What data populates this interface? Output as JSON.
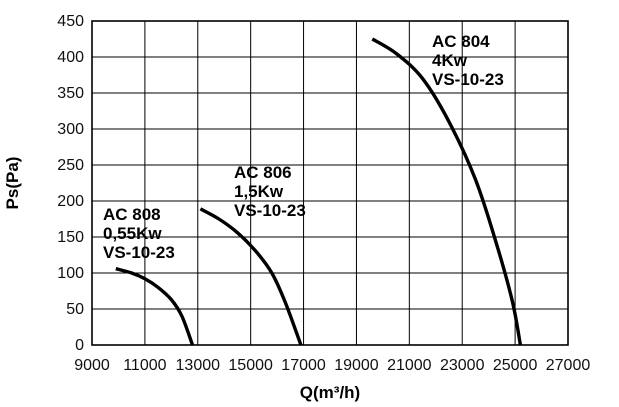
{
  "chart_data": {
    "type": "line",
    "xlabel": "Q(m³/h)",
    "ylabel": "Ps(Pa)",
    "xlim": [
      9000,
      27000
    ],
    "ylim": [
      0,
      450
    ],
    "xticks": [
      9000,
      11000,
      13000,
      15000,
      17000,
      19000,
      21000,
      23000,
      25000,
      27000
    ],
    "yticks": [
      0,
      50,
      100,
      150,
      200,
      250,
      300,
      350,
      400,
      450
    ],
    "grid": true,
    "series": [
      {
        "name": "AC 808",
        "label_lines": [
          "AC 808",
          "0,55Kw",
          "VS-10-23"
        ],
        "points": [
          [
            9900,
            106
          ],
          [
            10500,
            100
          ],
          [
            11000,
            92
          ],
          [
            11500,
            80
          ],
          [
            12000,
            63
          ],
          [
            12400,
            40
          ],
          [
            12800,
            0
          ]
        ]
      },
      {
        "name": "AC 806",
        "label_lines": [
          "AC 806",
          "1,5Kw",
          "VS-10-23"
        ],
        "points": [
          [
            13100,
            189
          ],
          [
            13800,
            175
          ],
          [
            14500,
            156
          ],
          [
            15200,
            130
          ],
          [
            15800,
            100
          ],
          [
            16300,
            60
          ],
          [
            16900,
            0
          ]
        ]
      },
      {
        "name": "AC 804",
        "label_lines": [
          "AC 804",
          "4Kw",
          "VS-10-23"
        ],
        "points": [
          [
            19600,
            425
          ],
          [
            20500,
            405
          ],
          [
            21500,
            370
          ],
          [
            22500,
            310
          ],
          [
            23500,
            230
          ],
          [
            24300,
            140
          ],
          [
            24900,
            60
          ],
          [
            25200,
            0
          ]
        ]
      }
    ]
  }
}
